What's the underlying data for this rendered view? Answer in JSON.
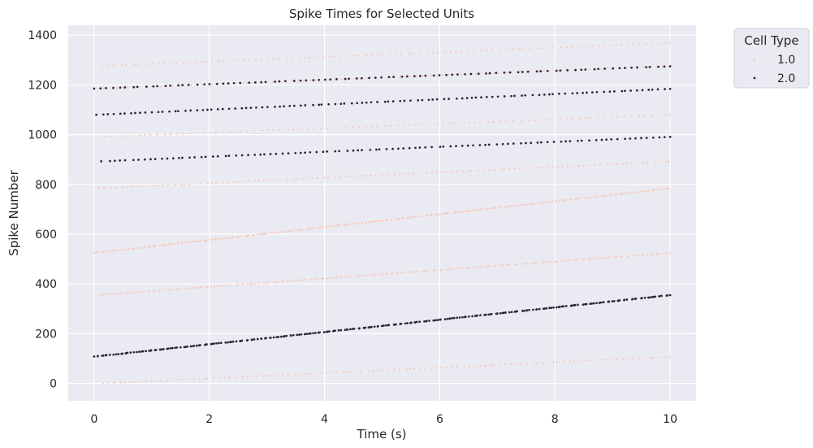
{
  "chart_data": {
    "type": "scatter",
    "title": "Spike Times for Selected Units",
    "xlabel": "Time (s)",
    "ylabel": "Spike Number",
    "xlim": [
      -0.45,
      10.45
    ],
    "ylim": [
      -70,
      1440
    ],
    "x_ticks": [
      0,
      2,
      4,
      6,
      8,
      10
    ],
    "y_ticks": [
      0,
      200,
      400,
      600,
      800,
      1000,
      1200,
      1400
    ],
    "grid": true,
    "legend": {
      "title": "Cell Type",
      "placement": "outside-top-right",
      "entries": [
        {
          "label": "1.0",
          "color": "#f7c9ba"
        },
        {
          "label": "2.0",
          "color": "#2b2338"
        }
      ]
    },
    "colors": {
      "background": "#eaeaf2",
      "grid": "#ffffff",
      "type_1": "#f7c9ba",
      "type_2": "#2b2338"
    },
    "series": [
      {
        "cell_type": "1.0",
        "unit": 1,
        "spike_start": 0,
        "spike_end": 108,
        "t_start": 0.15,
        "t_end": 10.0
      },
      {
        "cell_type": "2.0",
        "unit": 2,
        "spike_start": 108,
        "spike_end": 356,
        "t_start": 0.0,
        "t_end": 10.0
      },
      {
        "cell_type": "1.0",
        "unit": 3,
        "spike_start": 356,
        "spike_end": 525,
        "t_start": 0.1,
        "t_end": 10.0
      },
      {
        "cell_type": "1.0",
        "unit": 4,
        "spike_start": 525,
        "spike_end": 785,
        "t_start": 0.0,
        "t_end": 10.0
      },
      {
        "cell_type": "1.0",
        "unit": 5,
        "spike_start": 785,
        "spike_end": 893,
        "t_start": 0.1,
        "t_end": 10.0
      },
      {
        "cell_type": "2.0",
        "unit": 6,
        "spike_start": 893,
        "spike_end": 992,
        "t_start": 0.15,
        "t_end": 10.0
      },
      {
        "cell_type": "1.0",
        "unit": 7,
        "spike_start": 992,
        "spike_end": 1080,
        "t_start": 0.2,
        "t_end": 10.0
      },
      {
        "cell_type": "2.0",
        "unit": 8,
        "spike_start": 1080,
        "spike_end": 1185,
        "t_start": 0.05,
        "t_end": 10.0
      },
      {
        "cell_type": "1.0",
        "unit": 9,
        "spike_start": 1185,
        "spike_end": 1276,
        "t_start": 0.15,
        "t_end": 10.0
      },
      {
        "cell_type": "2.0",
        "unit": 10,
        "spike_start": 1185,
        "spike_end": 1276,
        "t_start": 0.0,
        "t_end": 10.0
      },
      {
        "cell_type": "1.0",
        "unit": 11,
        "spike_start": 1276,
        "spike_end": 1370,
        "t_start": 0.15,
        "t_end": 10.0
      }
    ]
  }
}
